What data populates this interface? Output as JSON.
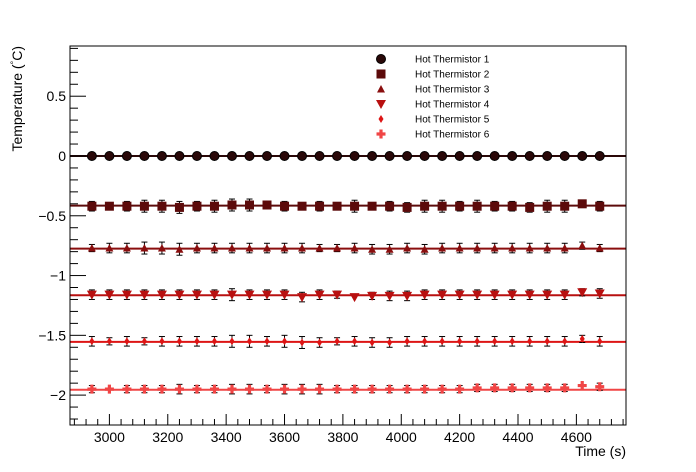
{
  "chart_data": {
    "type": "scatter",
    "title": "",
    "xlabel": "Time (s)",
    "ylabel_prefix": "Temperature (",
    "ylabel_degree": "°",
    "ylabel_suffix": "C)",
    "xlim": [
      2865,
      4770
    ],
    "ylim": [
      -2.25,
      0.92
    ],
    "x_ticks": [
      3000,
      3200,
      3400,
      3600,
      3800,
      4000,
      4200,
      4400,
      4600
    ],
    "x_tick_labels": [
      "3000",
      "3200",
      "3400",
      "3600",
      "3800",
      "4000",
      "4200",
      "4400",
      "4600"
    ],
    "y_ticks": [
      0.5,
      0,
      -0.5,
      -1,
      -1.5,
      -2
    ],
    "y_tick_labels": [
      "0.5",
      "0",
      "−0.5",
      "−1",
      "−1.5",
      "−2"
    ],
    "grid": false,
    "legend_position": "top-right",
    "x": [
      2940,
      3000,
      3060,
      3120,
      3180,
      3240,
      3300,
      3360,
      3420,
      3480,
      3540,
      3600,
      3660,
      3720,
      3780,
      3840,
      3900,
      3960,
      4020,
      4080,
      4140,
      4200,
      4260,
      4320,
      4380,
      4440,
      4500,
      4560,
      4620,
      4680
    ],
    "series": [
      {
        "name": "Hot Thermistor 1",
        "marker": "circle",
        "color": "#2a0808",
        "fit": 0.0,
        "values": [
          0,
          0,
          0,
          0,
          0,
          0,
          0,
          0,
          0,
          0,
          0,
          0,
          0,
          0,
          0,
          0,
          0,
          0,
          0,
          0,
          0,
          0,
          0,
          0,
          0,
          0,
          0,
          0,
          0,
          0
        ],
        "errors": [
          0.02,
          0.02,
          0.02,
          0.02,
          0.02,
          0.02,
          0.02,
          0.02,
          0.02,
          0.02,
          0.02,
          0.02,
          0.02,
          0.02,
          0.02,
          0.02,
          0.02,
          0.02,
          0.02,
          0.02,
          0.02,
          0.02,
          0.02,
          0.02,
          0.02,
          0.02,
          0.02,
          0.02,
          0.02,
          0.02
        ]
      },
      {
        "name": "Hot Thermistor 2",
        "marker": "square",
        "color": "#5c0a0a",
        "fit": -0.415,
        "values": [
          -0.42,
          -0.42,
          -0.42,
          -0.42,
          -0.42,
          -0.43,
          -0.42,
          -0.42,
          -0.41,
          -0.41,
          -0.41,
          -0.42,
          -0.42,
          -0.42,
          -0.42,
          -0.42,
          -0.42,
          -0.42,
          -0.43,
          -0.42,
          -0.42,
          -0.42,
          -0.42,
          -0.42,
          -0.42,
          -0.43,
          -0.42,
          -0.42,
          -0.4,
          -0.42
        ],
        "errors": [
          0.04,
          0.02,
          0.04,
          0.05,
          0.05,
          0.05,
          0.04,
          0.05,
          0.05,
          0.05,
          0.03,
          0.04,
          0.02,
          0.04,
          0.02,
          0.05,
          0.03,
          0.04,
          0.04,
          0.05,
          0.05,
          0.04,
          0.05,
          0.04,
          0.04,
          0.04,
          0.05,
          0.05,
          0.03,
          0.04
        ]
      },
      {
        "name": "Hot Thermistor 3",
        "marker": "triangle-up",
        "color": "#8a0e0e",
        "fit": -0.775,
        "values": [
          -0.77,
          -0.77,
          -0.77,
          -0.77,
          -0.77,
          -0.78,
          -0.77,
          -0.77,
          -0.77,
          -0.77,
          -0.77,
          -0.77,
          -0.77,
          -0.77,
          -0.77,
          -0.77,
          -0.78,
          -0.78,
          -0.77,
          -0.78,
          -0.77,
          -0.77,
          -0.77,
          -0.77,
          -0.77,
          -0.77,
          -0.77,
          -0.77,
          -0.75,
          -0.77
        ],
        "errors": [
          0.03,
          0.04,
          0.04,
          0.05,
          0.05,
          0.05,
          0.04,
          0.04,
          0.04,
          0.04,
          0.04,
          0.04,
          0.04,
          0.03,
          0.03,
          0.04,
          0.04,
          0.04,
          0.04,
          0.04,
          0.04,
          0.04,
          0.04,
          0.04,
          0.04,
          0.04,
          0.04,
          0.04,
          0.03,
          0.03
        ]
      },
      {
        "name": "Hot Thermistor 4",
        "marker": "triangle-down",
        "color": "#b81010",
        "fit": -1.165,
        "values": [
          -1.16,
          -1.16,
          -1.16,
          -1.16,
          -1.16,
          -1.16,
          -1.16,
          -1.16,
          -1.16,
          -1.16,
          -1.16,
          -1.16,
          -1.18,
          -1.16,
          -1.16,
          -1.18,
          -1.17,
          -1.17,
          -1.17,
          -1.16,
          -1.16,
          -1.16,
          -1.16,
          -1.16,
          -1.16,
          -1.16,
          -1.16,
          -1.16,
          -1.14,
          -1.15
        ],
        "errors": [
          0.04,
          0.04,
          0.04,
          0.04,
          0.04,
          0.04,
          0.04,
          0.04,
          0.05,
          0.04,
          0.04,
          0.04,
          0.04,
          0.04,
          0.03,
          0.02,
          0.03,
          0.04,
          0.04,
          0.04,
          0.04,
          0.04,
          0.04,
          0.04,
          0.04,
          0.04,
          0.04,
          0.04,
          0.03,
          0.04
        ]
      },
      {
        "name": "Hot Thermistor 5",
        "marker": "diamond",
        "color": "#dd1515",
        "fit": -1.555,
        "values": [
          -1.55,
          -1.55,
          -1.55,
          -1.55,
          -1.55,
          -1.55,
          -1.55,
          -1.55,
          -1.55,
          -1.55,
          -1.55,
          -1.55,
          -1.56,
          -1.56,
          -1.55,
          -1.55,
          -1.56,
          -1.56,
          -1.55,
          -1.55,
          -1.55,
          -1.55,
          -1.55,
          -1.55,
          -1.55,
          -1.55,
          -1.55,
          -1.55,
          -1.53,
          -1.55
        ],
        "errors": [
          0.04,
          0.03,
          0.04,
          0.03,
          0.04,
          0.04,
          0.04,
          0.04,
          0.05,
          0.05,
          0.04,
          0.05,
          0.05,
          0.04,
          0.03,
          0.04,
          0.04,
          0.04,
          0.04,
          0.04,
          0.04,
          0.04,
          0.04,
          0.04,
          0.04,
          0.04,
          0.04,
          0.04,
          0.03,
          0.04
        ]
      },
      {
        "name": "Hot Thermistor 6",
        "marker": "cross",
        "color": "#f04545",
        "fit": -1.955,
        "values": [
          -1.95,
          -1.95,
          -1.95,
          -1.95,
          -1.95,
          -1.95,
          -1.95,
          -1.95,
          -1.95,
          -1.95,
          -1.95,
          -1.95,
          -1.95,
          -1.95,
          -1.95,
          -1.95,
          -1.95,
          -1.95,
          -1.95,
          -1.95,
          -1.95,
          -1.95,
          -1.94,
          -1.94,
          -1.94,
          -1.94,
          -1.94,
          -1.94,
          -1.92,
          -1.93
        ],
        "errors": [
          0.03,
          0.02,
          0.03,
          0.03,
          0.03,
          0.04,
          0.03,
          0.03,
          0.04,
          0.04,
          0.03,
          0.04,
          0.04,
          0.04,
          0.03,
          0.03,
          0.03,
          0.03,
          0.03,
          0.03,
          0.03,
          0.03,
          0.03,
          0.03,
          0.03,
          0.03,
          0.03,
          0.03,
          0.02,
          0.03
        ]
      }
    ]
  }
}
